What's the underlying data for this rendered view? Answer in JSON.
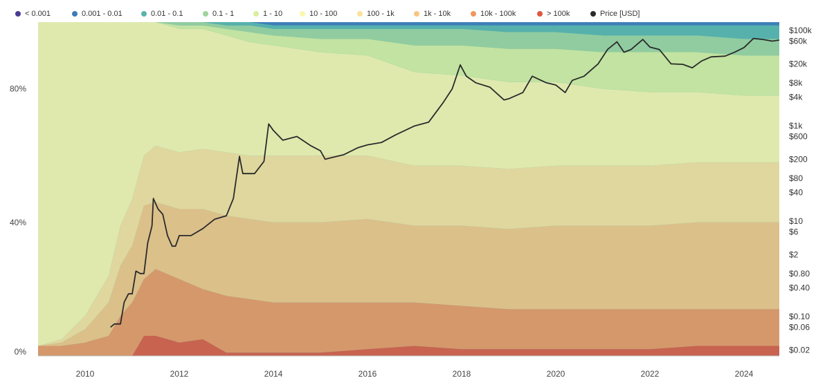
{
  "legend": [
    {
      "label": "< 0.001",
      "color": "#4b3c93"
    },
    {
      "label": "0.001 - 0.01",
      "color": "#3f7ab8"
    },
    {
      "label": "0.01 - 0.1",
      "color": "#5ab4ac"
    },
    {
      "label": "0.1 - 1",
      "color": "#9fd49c"
    },
    {
      "label": "1 - 10",
      "color": "#d9ef9e"
    },
    {
      "label": "10 - 100",
      "color": "#fbf6ad"
    },
    {
      "label": "100 - 1k",
      "color": "#fbe19a"
    },
    {
      "label": "1k - 10k",
      "color": "#f7c582"
    },
    {
      "label": "10k - 100k",
      "color": "#f0975e"
    },
    {
      "label": "> 100k",
      "color": "#e0583e"
    },
    {
      "label": "Price [USD]",
      "color": "#2a2a2a"
    }
  ],
  "chart_data": {
    "type": "area",
    "stacked": true,
    "x_tick_labels": [
      "2010",
      "2012",
      "2014",
      "2016",
      "2018",
      "2020",
      "2022",
      "2024"
    ],
    "y_left_tick_labels": [
      "80%",
      "40%",
      "0%"
    ],
    "y_right_tick_labels": [
      "$100k",
      "$60k",
      "$20k",
      "$8k",
      "$4k",
      "$1k",
      "$600",
      "$200",
      "$80",
      "$40",
      "$10",
      "$6",
      "$2",
      "$0.80",
      "$0.40",
      "$0.10",
      "$0.06",
      "$0.02"
    ],
    "y_left_range": [
      0,
      100
    ],
    "y_right_scale": "log",
    "y_right_range": [
      0.015,
      150000
    ],
    "x_range": [
      2009.0,
      2024.75
    ],
    "grid": false,
    "legend_position": "top",
    "x": [
      2009.0,
      2009.5,
      2010.0,
      2010.5,
      2010.75,
      2011.0,
      2011.25,
      2011.5,
      2012.0,
      2012.5,
      2013.0,
      2013.5,
      2014.0,
      2015.0,
      2016.0,
      2017.0,
      2018.0,
      2019.0,
      2020.0,
      2021.0,
      2022.0,
      2023.0,
      2024.0,
      2024.75
    ],
    "series": [
      {
        "name": "> 100k",
        "values": [
          0,
          0,
          0,
          0,
          0,
          0,
          6,
          6,
          4,
          5,
          1,
          1,
          1,
          1,
          2,
          3,
          2,
          2,
          2,
          2,
          2,
          3,
          3,
          3
        ]
      },
      {
        "name": "10k - 100k",
        "values": [
          3,
          3,
          4,
          6,
          12,
          16,
          17,
          20,
          19,
          15,
          17,
          16,
          15,
          15,
          14,
          13,
          13,
          12,
          12,
          12,
          12,
          11,
          11,
          11
        ]
      },
      {
        "name": "1k - 10k",
        "values": [
          0,
          1,
          4,
          10,
          15,
          17,
          22,
          20,
          21,
          24,
          24,
          24,
          24,
          24,
          25,
          23,
          24,
          24,
          25,
          25,
          25,
          26,
          26,
          26
        ]
      },
      {
        "name": "100 - 1k",
        "values": [
          0,
          1,
          4,
          8,
          12,
          14,
          15,
          17,
          17,
          18,
          19,
          19,
          20,
          20,
          19,
          18,
          18,
          18,
          18,
          18,
          18,
          18,
          18,
          18
        ]
      },
      {
        "name": "10 - 100",
        "values": [
          97,
          95,
          88,
          76,
          61,
          53,
          40,
          37,
          37,
          36,
          35,
          34,
          33,
          31,
          30,
          28,
          27,
          26,
          25,
          23,
          22,
          21,
          20,
          20
        ]
      },
      {
        "name": "1 - 10",
        "values": [
          0,
          0,
          0,
          0,
          0,
          0,
          0,
          0,
          1,
          1,
          2,
          3,
          3,
          4,
          5,
          8,
          9,
          10,
          10,
          11,
          12,
          12,
          12,
          12
        ]
      },
      {
        "name": "0.1 - 1",
        "values": [
          0,
          0,
          0,
          0,
          0,
          0,
          0,
          0,
          1,
          1,
          1,
          2,
          2,
          3,
          3,
          5,
          5,
          5,
          5,
          5,
          5,
          5,
          5,
          5
        ]
      },
      {
        "name": "0.01 - 0.1",
        "values": [
          0,
          0,
          0,
          0,
          0,
          0,
          0,
          0,
          0,
          0,
          1,
          1,
          1,
          1,
          1,
          1,
          1,
          2,
          2,
          3,
          3,
          3,
          4,
          4
        ]
      },
      {
        "name": "0.001 - 0.01",
        "values": [
          0,
          0,
          0,
          0,
          0,
          0,
          0,
          0,
          0,
          0,
          0,
          0,
          1,
          1,
          1,
          1,
          1,
          1,
          1,
          1,
          1,
          1,
          1,
          1
        ]
      }
    ],
    "price": {
      "name": "Price [USD]",
      "points": [
        [
          2010.54,
          0.06
        ],
        [
          2010.62,
          0.07
        ],
        [
          2010.75,
          0.07
        ],
        [
          2010.83,
          0.2
        ],
        [
          2010.92,
          0.3
        ],
        [
          2011.0,
          0.3
        ],
        [
          2011.08,
          0.9
        ],
        [
          2011.17,
          0.8
        ],
        [
          2011.25,
          0.8
        ],
        [
          2011.33,
          3.5
        ],
        [
          2011.42,
          8
        ],
        [
          2011.45,
          30
        ],
        [
          2011.55,
          18
        ],
        [
          2011.65,
          14
        ],
        [
          2011.75,
          5
        ],
        [
          2011.85,
          3
        ],
        [
          2011.92,
          3
        ],
        [
          2012.0,
          5
        ],
        [
          2012.25,
          5
        ],
        [
          2012.5,
          7
        ],
        [
          2012.75,
          11
        ],
        [
          2013.0,
          13
        ],
        [
          2013.15,
          30
        ],
        [
          2013.28,
          230
        ],
        [
          2013.35,
          100
        ],
        [
          2013.6,
          100
        ],
        [
          2013.8,
          180
        ],
        [
          2013.9,
          1100
        ],
        [
          2014.0,
          800
        ],
        [
          2014.2,
          500
        ],
        [
          2014.5,
          600
        ],
        [
          2014.8,
          380
        ],
        [
          2015.0,
          300
        ],
        [
          2015.1,
          200
        ],
        [
          2015.5,
          250
        ],
        [
          2015.8,
          350
        ],
        [
          2016.0,
          400
        ],
        [
          2016.3,
          450
        ],
        [
          2016.6,
          650
        ],
        [
          2017.0,
          1000
        ],
        [
          2017.3,
          1200
        ],
        [
          2017.6,
          3000
        ],
        [
          2017.8,
          6000
        ],
        [
          2017.97,
          19000
        ],
        [
          2018.1,
          11000
        ],
        [
          2018.3,
          8000
        ],
        [
          2018.6,
          6500
        ],
        [
          2018.9,
          3500
        ],
        [
          2019.0,
          3700
        ],
        [
          2019.3,
          5000
        ],
        [
          2019.5,
          11000
        ],
        [
          2019.8,
          8000
        ],
        [
          2020.0,
          7200
        ],
        [
          2020.2,
          5000
        ],
        [
          2020.35,
          9000
        ],
        [
          2020.6,
          11000
        ],
        [
          2020.9,
          20000
        ],
        [
          2021.1,
          40000
        ],
        [
          2021.3,
          58000
        ],
        [
          2021.45,
          35000
        ],
        [
          2021.6,
          40000
        ],
        [
          2021.85,
          65000
        ],
        [
          2022.0,
          45000
        ],
        [
          2022.2,
          40000
        ],
        [
          2022.45,
          20000
        ],
        [
          2022.7,
          19500
        ],
        [
          2022.9,
          16500
        ],
        [
          2023.1,
          23000
        ],
        [
          2023.3,
          28000
        ],
        [
          2023.6,
          29000
        ],
        [
          2023.8,
          35000
        ],
        [
          2024.0,
          44000
        ],
        [
          2024.2,
          68000
        ],
        [
          2024.4,
          65000
        ],
        [
          2024.6,
          60000
        ],
        [
          2024.75,
          63000
        ]
      ]
    }
  }
}
